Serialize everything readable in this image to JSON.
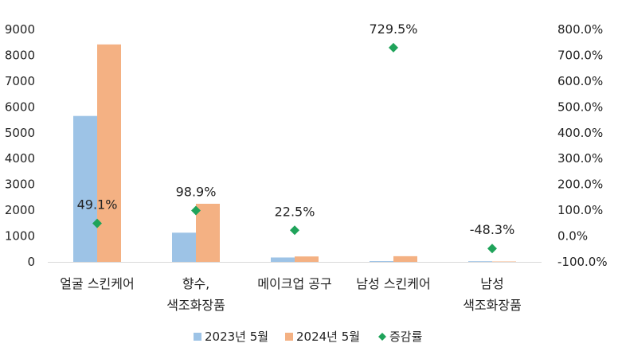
{
  "chart_data": {
    "type": "bar",
    "categories": [
      [
        "얼굴 스킨케어"
      ],
      [
        "향수,",
        "색조화장품"
      ],
      [
        "메이크업 공구"
      ],
      [
        "남성 스킨케어"
      ],
      [
        "남성",
        "색조화장품"
      ]
    ],
    "series": [
      {
        "name": "2023년 5월",
        "type": "bar",
        "axis": "left",
        "color": "#9DC3E6",
        "values": [
          5650,
          1130,
          170,
          30,
          25
        ]
      },
      {
        "name": "2024년 5월",
        "type": "bar",
        "axis": "left",
        "color": "#F4B183",
        "values": [
          8420,
          2250,
          210,
          220,
          15
        ]
      },
      {
        "name": "증감률",
        "type": "scatter",
        "axis": "right",
        "color": "#1FA35A",
        "marker": "diamond",
        "values": [
          49.1,
          98.9,
          22.5,
          729.5,
          -48.3
        ],
        "labels": [
          "49.1%",
          "98.9%",
          "22.5%",
          "729.5%",
          "-48.3%"
        ]
      }
    ],
    "y_left": {
      "min": 0,
      "max": 9000,
      "ticks": [
        "0",
        "1000",
        "2000",
        "3000",
        "4000",
        "5000",
        "6000",
        "7000",
        "8000",
        "9000"
      ]
    },
    "y_right": {
      "min": -100,
      "max": 800,
      "ticks": [
        "-100.0%",
        "0.0%",
        "100.0%",
        "200.0%",
        "300.0%",
        "400.0%",
        "500.0%",
        "600.0%",
        "700.0%",
        "800.0%"
      ]
    },
    "legend_position": "bottom",
    "grid": false
  }
}
